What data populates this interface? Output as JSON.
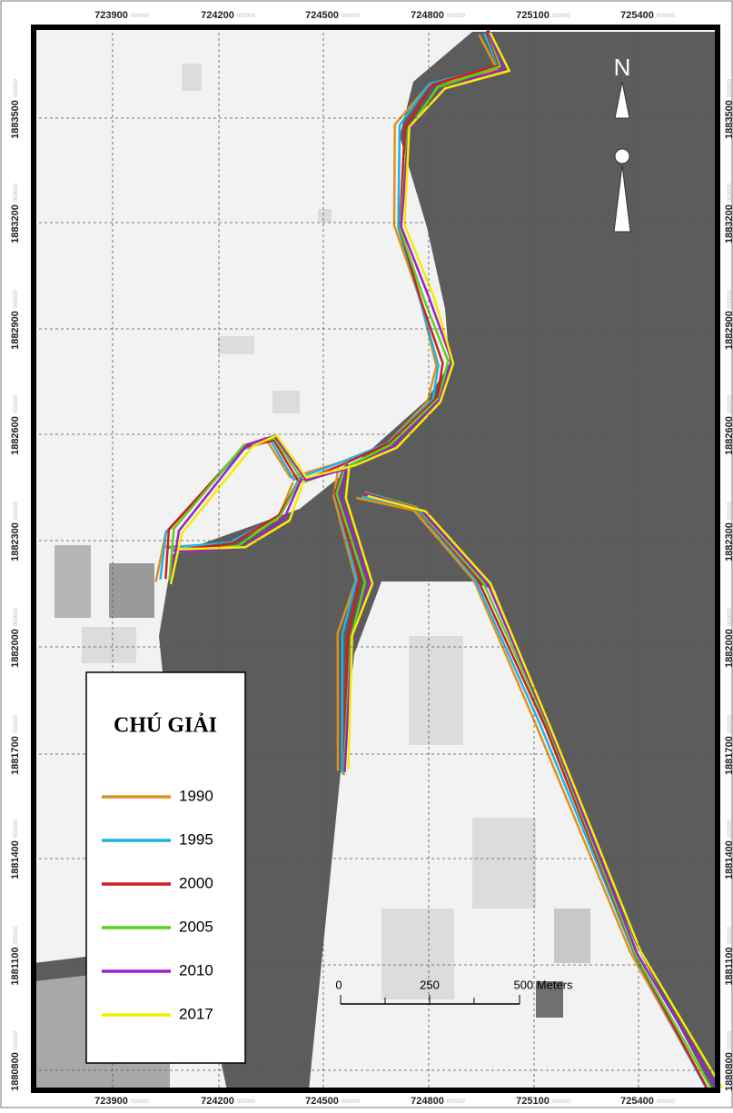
{
  "map": {
    "x_labels": [
      723900,
      724200,
      724500,
      724800,
      725100,
      725400
    ],
    "y_labels": [
      1883500,
      1883200,
      1882900,
      1882600,
      1882300,
      1882000,
      1881700,
      1881400,
      1881100,
      1880800
    ],
    "coordinate_suffix": "000000",
    "north": "N",
    "legend": {
      "title": "CHÚ GIẢI",
      "items": [
        {
          "label": "1990",
          "color": "#e0901e"
        },
        {
          "label": "1995",
          "color": "#1cb4e6"
        },
        {
          "label": "2000",
          "color": "#d21e1e"
        },
        {
          "label": "2005",
          "color": "#5ad21e"
        },
        {
          "label": "2010",
          "color": "#a01ed2"
        },
        {
          "label": "2017",
          "color": "#f2ee00"
        }
      ]
    },
    "scale_bar": {
      "labels": [
        "0",
        "250",
        "500 Meters"
      ]
    }
  }
}
